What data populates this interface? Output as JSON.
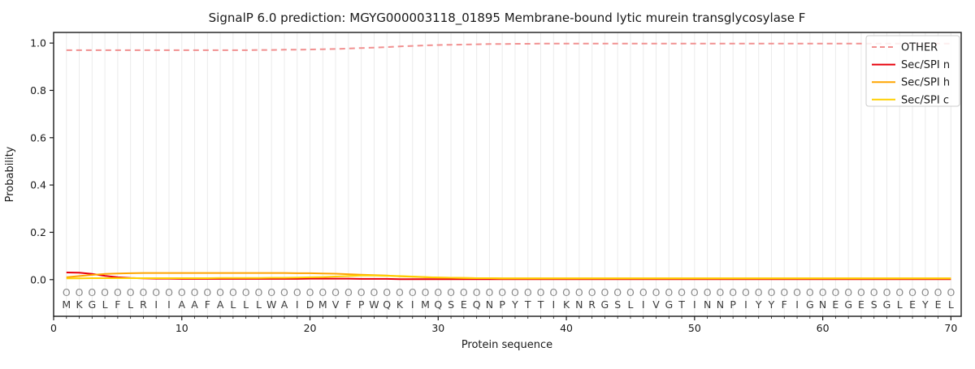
{
  "chart_data": {
    "type": "line",
    "title": "SignalP 6.0 prediction: MGYG000003118_01895 Membrane-bound lytic murein transglycosylase F",
    "xlabel": "Protein sequence",
    "ylabel": "Probability",
    "xlim": [
      0,
      70.8
    ],
    "ylim": [
      -0.155,
      1.045
    ],
    "x_ticks": [
      0,
      10,
      20,
      30,
      40,
      50,
      60,
      70
    ],
    "y_ticks": [
      0.0,
      0.2,
      0.4,
      0.6,
      0.8,
      1.0
    ],
    "y_tick_labels": [
      "0.0",
      "0.2",
      "0.4",
      "0.6",
      "0.8",
      "1.0"
    ],
    "grid": "vertical gridline at every residue position, no horizontal grid",
    "legend_position": "upper right",
    "sequence": "MKGLFLRIIAAFALLLWAIDMVFPWQKIMQSEQNPYTTIKNRGSLIVGTINNPIYYFIGNEGESGLEYEL",
    "predicted_labels": "OOOOOOOOOOOOOOOOOOOOOOOOOOOOOOOOOOOOOOOOOOOOOOOOOOOOOOOOOOOOOOOOOOOOOO",
    "series": [
      {
        "name": "OTHER",
        "color": "#f19090",
        "dashed": true,
        "values": [
          0.97,
          0.97,
          0.97,
          0.97,
          0.97,
          0.97,
          0.97,
          0.97,
          0.97,
          0.97,
          0.97,
          0.97,
          0.97,
          0.97,
          0.97,
          0.971,
          0.971,
          0.972,
          0.972,
          0.973,
          0.974,
          0.975,
          0.977,
          0.979,
          0.981,
          0.983,
          0.986,
          0.988,
          0.99,
          0.992,
          0.993,
          0.994,
          0.995,
          0.996,
          0.996,
          0.997,
          0.997,
          0.998,
          0.998,
          0.998,
          0.998,
          0.998,
          0.998,
          0.998,
          0.998,
          0.998,
          0.998,
          0.998,
          0.998,
          0.998,
          0.998,
          0.998,
          0.998,
          0.998,
          0.998,
          0.998,
          0.998,
          0.998,
          0.998,
          0.998,
          0.998,
          0.998,
          0.998,
          0.998,
          0.998,
          0.998,
          0.998,
          0.998,
          0.998,
          0.998
        ]
      },
      {
        "name": "Sec/SPI n",
        "color": "#e8000b",
        "dashed": false,
        "values": [
          0.03,
          0.029,
          0.024,
          0.016,
          0.01,
          0.007,
          0.005,
          0.004,
          0.004,
          0.003,
          0.003,
          0.003,
          0.003,
          0.003,
          0.003,
          0.003,
          0.003,
          0.003,
          0.003,
          0.004,
          0.004,
          0.004,
          0.004,
          0.003,
          0.003,
          0.003,
          0.002,
          0.002,
          0.002,
          0.002,
          0.002,
          0.002,
          0.002,
          0.002,
          0.002,
          0.002,
          0.002,
          0.002,
          0.002,
          0.002,
          0.002,
          0.002,
          0.002,
          0.002,
          0.002,
          0.002,
          0.002,
          0.002,
          0.002,
          0.002,
          0.002,
          0.002,
          0.002,
          0.002,
          0.002,
          0.002,
          0.002,
          0.002,
          0.002,
          0.002,
          0.002,
          0.002,
          0.002,
          0.002,
          0.002,
          0.002,
          0.002,
          0.002,
          0.002,
          0.002
        ]
      },
      {
        "name": "Sec/SPI h",
        "color": "#ffa500",
        "dashed": false,
        "values": [
          0.01,
          0.015,
          0.02,
          0.024,
          0.026,
          0.027,
          0.028,
          0.028,
          0.028,
          0.028,
          0.028,
          0.028,
          0.028,
          0.028,
          0.028,
          0.028,
          0.028,
          0.028,
          0.027,
          0.027,
          0.026,
          0.025,
          0.023,
          0.021,
          0.019,
          0.017,
          0.014,
          0.012,
          0.01,
          0.009,
          0.008,
          0.007,
          0.006,
          0.006,
          0.005,
          0.005,
          0.005,
          0.005,
          0.005,
          0.005,
          0.005,
          0.005,
          0.005,
          0.005,
          0.005,
          0.005,
          0.005,
          0.005,
          0.005,
          0.005,
          0.005,
          0.005,
          0.005,
          0.005,
          0.005,
          0.005,
          0.005,
          0.005,
          0.005,
          0.005,
          0.005,
          0.005,
          0.005,
          0.005,
          0.005,
          0.005,
          0.005,
          0.005,
          0.005,
          0.005
        ]
      },
      {
        "name": "Sec/SPI c",
        "color": "#ffd000",
        "dashed": false,
        "values": [
          0.005,
          0.005,
          0.006,
          0.006,
          0.006,
          0.006,
          0.006,
          0.006,
          0.006,
          0.006,
          0.006,
          0.006,
          0.007,
          0.007,
          0.007,
          0.007,
          0.008,
          0.008,
          0.009,
          0.01,
          0.011,
          0.013,
          0.015,
          0.017,
          0.017,
          0.016,
          0.015,
          0.013,
          0.011,
          0.009,
          0.008,
          0.007,
          0.006,
          0.006,
          0.005,
          0.005,
          0.005,
          0.005,
          0.005,
          0.005,
          0.005,
          0.005,
          0.005,
          0.005,
          0.005,
          0.005,
          0.005,
          0.005,
          0.005,
          0.005,
          0.005,
          0.005,
          0.005,
          0.005,
          0.005,
          0.005,
          0.005,
          0.005,
          0.005,
          0.005,
          0.005,
          0.005,
          0.005,
          0.005,
          0.005,
          0.005,
          0.005,
          0.005,
          0.005,
          0.005
        ]
      }
    ]
  }
}
